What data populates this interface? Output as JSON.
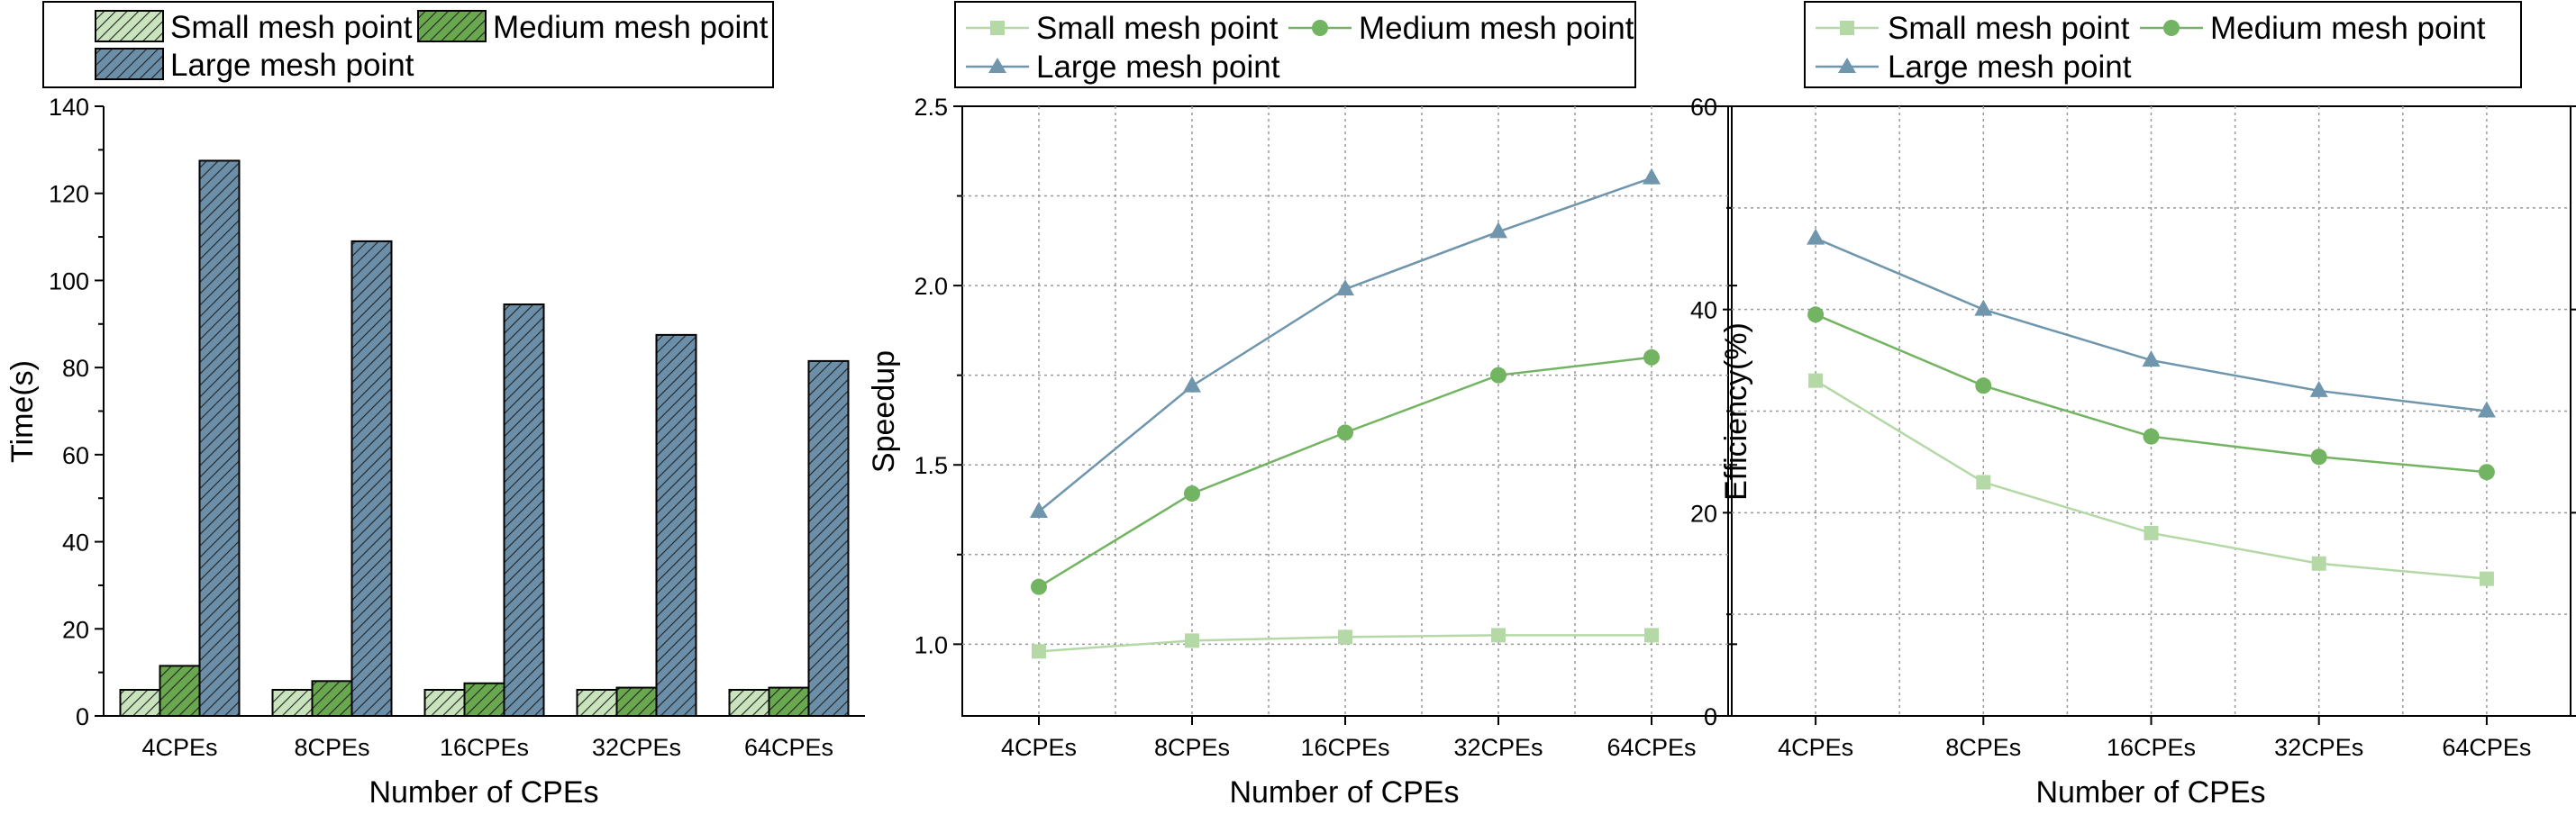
{
  "chart_data": [
    {
      "type": "bar",
      "title": "",
      "xlabel": "Number of CPEs",
      "ylabel": "Time(s)",
      "ylim": [
        0,
        140
      ],
      "yticks": [
        0,
        20,
        40,
        60,
        80,
        100,
        120,
        140
      ],
      "grid": false,
      "legend_position": "top",
      "categories": [
        "4CPEs",
        "8CPEs",
        "16CPEs",
        "32CPEs",
        "64CPEs"
      ],
      "series": [
        {
          "name": "Small mesh point",
          "color": "#c9e3bd",
          "values": [
            6,
            6,
            6,
            6,
            6
          ]
        },
        {
          "name": "Medium mesh point",
          "color": "#6aa84f",
          "values": [
            11.5,
            8,
            7.5,
            6.5,
            6.5
          ]
        },
        {
          "name": "Large mesh point",
          "color": "#6b8fa8",
          "values": [
            127.5,
            109,
            94.5,
            87.5,
            81.5
          ]
        }
      ]
    },
    {
      "type": "line",
      "title": "",
      "xlabel": "Number of CPEs",
      "ylabel": "Speedup",
      "ylim": [
        0.8,
        2.5
      ],
      "yticks": [
        1.0,
        1.5,
        2.0,
        2.5
      ],
      "ytick_labels": [
        "1.0",
        "1.5",
        "2.0",
        "2.5"
      ],
      "grid": true,
      "legend_position": "top",
      "categories": [
        "4CPEs",
        "8CPEs",
        "16CPEs",
        "32CPEs",
        "64CPEs"
      ],
      "series": [
        {
          "name": "Small mesh point",
          "color": "#b4d9a6",
          "marker": "square",
          "values": [
            0.98,
            1.01,
            1.02,
            1.025,
            1.025
          ]
        },
        {
          "name": "Medium mesh point",
          "color": "#73b462",
          "marker": "circle",
          "values": [
            1.16,
            1.42,
            1.59,
            1.75,
            1.8
          ]
        },
        {
          "name": "Large mesh point",
          "color": "#6f96ad",
          "marker": "triangle",
          "values": [
            1.37,
            1.72,
            1.99,
            2.15,
            2.3
          ]
        }
      ]
    },
    {
      "type": "line",
      "title": "",
      "xlabel": "Number of CPEs",
      "ylabel": "Efficiency(%)",
      "ylim": [
        0,
        60
      ],
      "yticks": [
        0,
        20,
        40,
        60
      ],
      "ytick_labels": [
        "0",
        "20",
        "40",
        "60"
      ],
      "grid": true,
      "legend_position": "top",
      "categories": [
        "4CPEs",
        "8CPEs",
        "16CPEs",
        "32CPEs",
        "64CPEs"
      ],
      "series": [
        {
          "name": "Small mesh point",
          "color": "#b4d9a6",
          "marker": "square",
          "values": [
            33,
            23,
            18,
            15,
            13.5
          ]
        },
        {
          "name": "Medium mesh point",
          "color": "#73b462",
          "marker": "circle",
          "values": [
            39.5,
            32.5,
            27.5,
            25.5,
            24
          ]
        },
        {
          "name": "Large mesh point",
          "color": "#6f96ad",
          "marker": "triangle",
          "values": [
            47,
            40,
            35,
            32,
            30
          ]
        }
      ]
    }
  ]
}
